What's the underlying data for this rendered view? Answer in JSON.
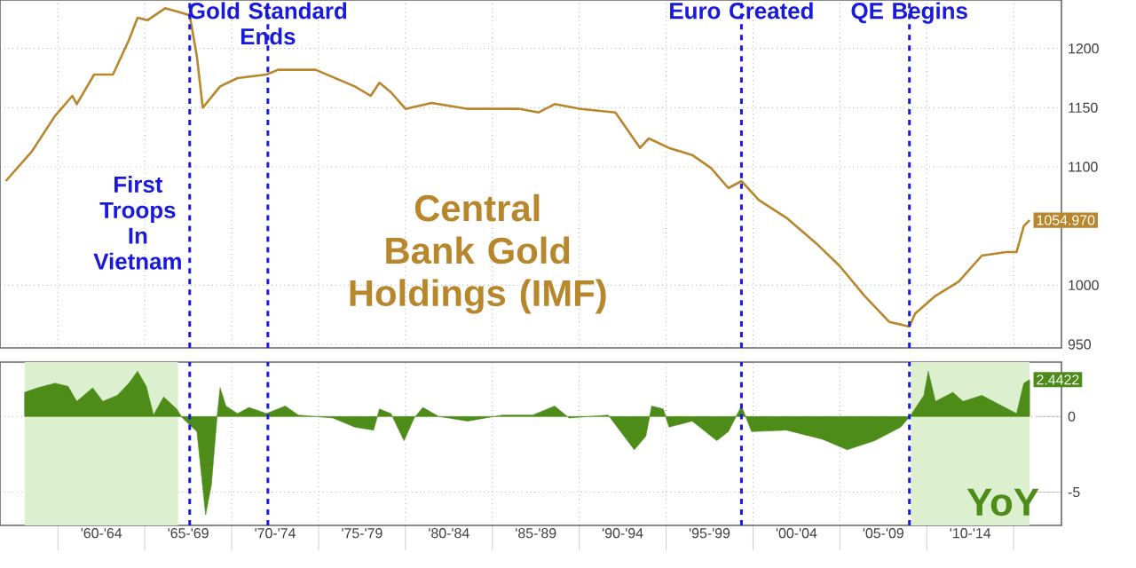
{
  "chart_data": [
    {
      "type": "line",
      "title": "Central Bank Gold Holdings (IMF)",
      "x": [
        "1957-01",
        "1958-07",
        "1959-11",
        "1960-11",
        "1961-02",
        "1962-02",
        "1963-03",
        "1964-02",
        "1964-08",
        "1965-03",
        "1966-03",
        "1966-12",
        "1967-08",
        "1968-01",
        "1968-05",
        "1969-05",
        "1970-05",
        "1972-01",
        "1972-09",
        "1974-11",
        "1977-02",
        "1978-01",
        "1978-07",
        "1979-03",
        "1980-01",
        "1981-07",
        "1983-08",
        "1986-08",
        "1987-09",
        "1988-08",
        "1990-02",
        "1992-02",
        "1993-07",
        "1994-01",
        "1995-03",
        "1996-07",
        "1997-08",
        "1998-08",
        "1999-05",
        "2000-05",
        "2001-12",
        "2003-09",
        "2005-01",
        "2006-06",
        "2007-11",
        "2009-01",
        "2009-05",
        "2010-07",
        "2011-11",
        "2013-03",
        "2014-08",
        "2015-03",
        "2015-08",
        "2015-12"
      ],
      "series": [
        {
          "color": "#b8862b",
          "values": [
            1088,
            1113,
            1143,
            1160,
            1153,
            1178,
            1178,
            1207,
            1226,
            1224,
            1234,
            1231,
            1228,
            1193,
            1150,
            1168,
            1175,
            1178,
            1182,
            1182,
            1168,
            1160,
            1171,
            1163,
            1149,
            1154,
            1149,
            1149,
            1146,
            1153,
            1149,
            1146,
            1116,
            1124,
            1116,
            1110,
            1099,
            1082,
            1088,
            1072,
            1057,
            1035,
            1016,
            991,
            969,
            965,
            976,
            991,
            1003,
            1025,
            1028,
            1028,
            1050,
            1054.97
          ],
          "value_labels": [
            null,
            null,
            null,
            null,
            null,
            null,
            null,
            null,
            null,
            null,
            null,
            null,
            null,
            null,
            null,
            null,
            null,
            null,
            null,
            null,
            null,
            null,
            null,
            null,
            null,
            null,
            null,
            null,
            null,
            null,
            null,
            null,
            null,
            null,
            null,
            null,
            null,
            null,
            null,
            null,
            null,
            null,
            null,
            null,
            null,
            null,
            null,
            null,
            null,
            null,
            null,
            null,
            null,
            "1054.970"
          ]
        }
      ],
      "xlim": [
        "1956-09",
        "2017-10"
      ],
      "ylim": [
        947,
        1241
      ],
      "xticks": [
        {
          "value": "1960",
          "label": null
        },
        {
          "value": "1965",
          "label": null
        },
        {
          "value": "1970",
          "label": null
        },
        {
          "value": "1975",
          "label": null
        },
        {
          "value": "1980",
          "label": null
        },
        {
          "value": "1985",
          "label": null
        },
        {
          "value": "1990",
          "label": null
        },
        {
          "value": "1995",
          "label": null
        },
        {
          "value": "2000",
          "label": null
        },
        {
          "value": "2005",
          "label": null
        },
        {
          "value": "2010",
          "label": null
        },
        {
          "value": "2015",
          "label": null
        }
      ],
      "yticks": [
        950,
        1000,
        1100,
        1150,
        1200
      ],
      "tick_labels": "y",
      "grid": true,
      "ref_lines": [
        {
          "axis": "x",
          "value": "1967-08",
          "label": "First Troops In Vietnam",
          "color": "#1a1adb",
          "line_style": "dashed"
        },
        {
          "axis": "x",
          "value": "1972-02",
          "label": "Gold Standard Ends",
          "color": "#1a1adb",
          "line_style": "dashed"
        },
        {
          "axis": "x",
          "value": "1999-05",
          "label": "Euro Created",
          "color": "#1a1adb",
          "line_style": "dashed"
        },
        {
          "axis": "x",
          "value": "2009-01",
          "label": "QE Begins",
          "color": "#1a1adb",
          "line_style": "dashed"
        }
      ]
    },
    {
      "type": "area",
      "x": [
        "1958-02",
        "1958-11",
        "1959-11",
        "1960-08",
        "1961-02",
        "1962-01",
        "1962-08",
        "1963-06",
        "1964-02",
        "1964-08",
        "1965-02",
        "1965-07",
        "1966-02",
        "1966-11",
        "1967-03",
        "1968-01",
        "1968-07",
        "1968-11",
        "1969-03",
        "1969-05",
        "1969-09",
        "1970-05",
        "1971-01",
        "1972-01",
        "1973-02",
        "1973-11",
        "1975-11",
        "1977-02",
        "1978-03",
        "1978-07",
        "1979-03",
        "1979-12",
        "1980-07",
        "1981-01",
        "1981-12",
        "1983-08",
        "1985-08",
        "1987-05",
        "1988-08",
        "1989-06",
        "1991-09",
        "1993-03",
        "1993-11",
        "1994-03",
        "1994-11",
        "1995-03",
        "1996-07",
        "1997-12",
        "1998-08",
        "1999-05",
        "1999-12",
        "2001-12",
        "2004-01",
        "2005-06",
        "2007-01",
        "2008-07",
        "2009-02",
        "2009-11",
        "2010-02",
        "2010-07",
        "2011-07",
        "2012-02",
        "2013-03",
        "2014-03",
        "2015-03",
        "2015-08",
        "2015-12"
      ],
      "series": [
        {
          "color": "#4e8c1a",
          "values": [
            1.6,
            1.9,
            2.2,
            2.0,
            1.0,
            1.9,
            1.0,
            1.4,
            2.2,
            3.0,
            2.0,
            0.1,
            1.3,
            0.5,
            -0.1,
            -1.0,
            -6.5,
            -4.5,
            0.1,
            1.9,
            0.7,
            0.2,
            0.6,
            0.2,
            0.7,
            0.1,
            -0.1,
            -0.7,
            -0.9,
            0.5,
            0.2,
            -1.6,
            -0.1,
            0.6,
            0,
            -0.3,
            0.1,
            0.1,
            0.7,
            -0.1,
            0.1,
            -2.2,
            -1.3,
            0.7,
            0.5,
            -0.7,
            -0.3,
            -1.6,
            -1.0,
            0.7,
            -1.0,
            -0.9,
            -1.5,
            -2.2,
            -1.6,
            -0.7,
            0.1,
            1.4,
            3.0,
            1.0,
            1.6,
            1.0,
            1.4,
            0.8,
            0.2,
            2.2,
            2.4422
          ],
          "value_labels": [
            null,
            null,
            null,
            null,
            null,
            null,
            null,
            null,
            null,
            null,
            null,
            null,
            null,
            null,
            null,
            null,
            null,
            null,
            null,
            null,
            null,
            null,
            null,
            null,
            null,
            null,
            null,
            null,
            null,
            null,
            null,
            null,
            null,
            null,
            null,
            null,
            null,
            null,
            null,
            null,
            null,
            null,
            null,
            null,
            null,
            null,
            null,
            null,
            null,
            null,
            null,
            null,
            null,
            null,
            null,
            null,
            null,
            null,
            null,
            null,
            null,
            null,
            null,
            null,
            null,
            null,
            "2.4422"
          ]
        }
      ],
      "xlim": [
        "1956-09",
        "2017-10"
      ],
      "ylim": [
        -7.2,
        3.6
      ],
      "xticks": [
        {
          "value": "1960",
          "label": null
        },
        {
          "value": "1962-07",
          "label": "'60-'64"
        },
        {
          "value": "1965",
          "label": null
        },
        {
          "value": "1967-07",
          "label": "'65-'69"
        },
        {
          "value": "1970",
          "label": null
        },
        {
          "value": "1972-07",
          "label": "'70-'74"
        },
        {
          "value": "1975",
          "label": null
        },
        {
          "value": "1977-07",
          "label": "'75-'79"
        },
        {
          "value": "1980",
          "label": null
        },
        {
          "value": "1982-07",
          "label": "'80-'84"
        },
        {
          "value": "1985",
          "label": null
        },
        {
          "value": "1987-07",
          "label": "'85-'89"
        },
        {
          "value": "1990",
          "label": null
        },
        {
          "value": "1992-07",
          "label": "'90-'94"
        },
        {
          "value": "1995",
          "label": null
        },
        {
          "value": "1997-07",
          "label": "'95-'99"
        },
        {
          "value": "2000",
          "label": null
        },
        {
          "value": "2002-07",
          "label": "'00-'04"
        },
        {
          "value": "2005",
          "label": null
        },
        {
          "value": "2007-07",
          "label": "'05-'09"
        },
        {
          "value": "2010",
          "label": null
        },
        {
          "value": "2012-07",
          "label": "'10-'14"
        },
        {
          "value": "2015",
          "label": null
        }
      ],
      "yticks": [
        -5,
        0
      ],
      "grid": true,
      "bands": [
        {
          "axis": "x",
          "from": "1958-02",
          "to": "1966-12",
          "color": "#dcefcf"
        },
        {
          "axis": "x",
          "from": "2009-02",
          "to": "2015-12",
          "color": "#dcefcf"
        }
      ],
      "ref_lines": [
        {
          "axis": "x",
          "value": "1967-08",
          "color": "#1a1adb",
          "line_style": "dashed"
        },
        {
          "axis": "x",
          "value": "1972-02",
          "color": "#1a1adb",
          "line_style": "dashed"
        },
        {
          "axis": "x",
          "value": "1999-05",
          "color": "#1a1adb",
          "line_style": "dashed"
        },
        {
          "axis": "x",
          "value": "2009-01",
          "color": "#1a1adb",
          "line_style": "dashed"
        }
      ],
      "annotations": [
        "YoY"
      ]
    }
  ]
}
